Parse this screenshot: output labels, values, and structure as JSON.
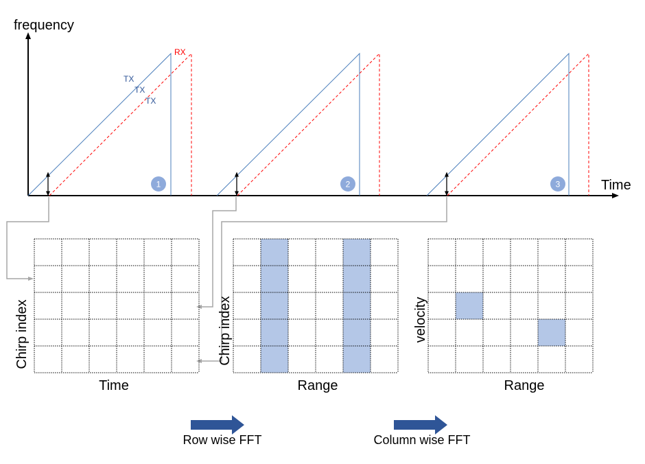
{
  "chirp_plot": {
    "y_axis_label": "frequency",
    "x_axis_label": "Time",
    "rx_label": "RX",
    "tx_labels": [
      "TX",
      "TX",
      "TX"
    ],
    "chirps": [
      {
        "number": "1"
      },
      {
        "number": "2"
      },
      {
        "number": "3"
      }
    ]
  },
  "matrices": [
    {
      "x_label": "Time",
      "y_label": "Chirp index",
      "rows": 5,
      "cols": 6,
      "highlight": []
    },
    {
      "x_label": "Range",
      "y_label": "Chirp index",
      "rows": 5,
      "cols": 6,
      "highlight": [
        "col-1",
        "col-4"
      ]
    },
    {
      "x_label": "Range",
      "y_label": "velocity",
      "rows": 5,
      "cols": 6,
      "highlight": [
        "r2c1",
        "r3c4"
      ]
    }
  ],
  "steps": [
    {
      "label": "Row wise FFT"
    },
    {
      "label": "Column wise FFT"
    }
  ],
  "colors": {
    "tx": "#4a7ebb",
    "rx": "#ff0000",
    "axis": "#000000",
    "badge": "#8eaadb",
    "highlight": "#b4c7e7",
    "connector": "#a6a6a6",
    "fft_arrow": "#2f5597",
    "grid": "#000000"
  }
}
